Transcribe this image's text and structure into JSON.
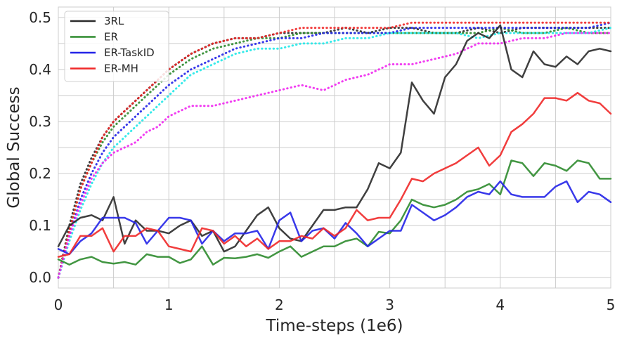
{
  "chart_data": {
    "type": "line",
    "xlabel": "Time-steps (1e6)",
    "ylabel": "Global Success",
    "xlim": [
      0,
      5
    ],
    "ylim": [
      -0.02,
      0.52
    ],
    "xticks": [
      "0",
      "1",
      "2",
      "3",
      "4",
      "5"
    ],
    "yticks": [
      "0.0",
      "0.1",
      "0.2",
      "0.3",
      "0.4",
      "0.5"
    ],
    "grid": true,
    "legend_position": "top-left",
    "legend": [
      {
        "name": "3RL",
        "color": "#2b2b2b"
      },
      {
        "name": "ER",
        "color": "#2e8b2e"
      },
      {
        "name": "ER-TaskID",
        "color": "#2424e8"
      },
      {
        "name": "ER-MH",
        "color": "#f02828"
      }
    ],
    "series": [
      {
        "name": "3RL",
        "style": "solid",
        "color": "#2b2b2b",
        "x": [
          0,
          0.1,
          0.2,
          0.3,
          0.4,
          0.5,
          0.6,
          0.7,
          0.8,
          0.9,
          1.0,
          1.1,
          1.2,
          1.3,
          1.4,
          1.5,
          1.6,
          1.7,
          1.8,
          1.9,
          2.0,
          2.1,
          2.2,
          2.3,
          2.4,
          2.5,
          2.6,
          2.7,
          2.8,
          2.9,
          3.0,
          3.1,
          3.2,
          3.3,
          3.4,
          3.5,
          3.6,
          3.7,
          3.8,
          3.9,
          4.0,
          4.1,
          4.2,
          4.3,
          4.4,
          4.5,
          4.6,
          4.7,
          4.8,
          4.9,
          5.0
        ],
        "y": [
          0.06,
          0.1,
          0.115,
          0.12,
          0.11,
          0.155,
          0.065,
          0.11,
          0.09,
          0.09,
          0.085,
          0.1,
          0.11,
          0.08,
          0.09,
          0.05,
          0.06,
          0.09,
          0.12,
          0.135,
          0.095,
          0.075,
          0.07,
          0.1,
          0.13,
          0.13,
          0.135,
          0.135,
          0.17,
          0.22,
          0.21,
          0.24,
          0.375,
          0.34,
          0.315,
          0.385,
          0.41,
          0.455,
          0.47,
          0.46,
          0.485,
          0.4,
          0.385,
          0.435,
          0.41,
          0.405,
          0.425,
          0.41,
          0.435,
          0.44,
          0.435
        ]
      },
      {
        "name": "ER",
        "style": "solid",
        "color": "#2e8b2e",
        "x": [
          0,
          0.1,
          0.2,
          0.3,
          0.4,
          0.5,
          0.6,
          0.7,
          0.8,
          0.9,
          1.0,
          1.1,
          1.2,
          1.3,
          1.4,
          1.5,
          1.6,
          1.7,
          1.8,
          1.9,
          2.0,
          2.1,
          2.2,
          2.3,
          2.4,
          2.5,
          2.6,
          2.7,
          2.8,
          2.9,
          3.0,
          3.1,
          3.2,
          3.3,
          3.4,
          3.5,
          3.6,
          3.7,
          3.8,
          3.9,
          4.0,
          4.1,
          4.2,
          4.3,
          4.4,
          4.5,
          4.6,
          4.7,
          4.8,
          4.9,
          5.0
        ],
        "y": [
          0.035,
          0.025,
          0.035,
          0.04,
          0.03,
          0.027,
          0.03,
          0.025,
          0.045,
          0.04,
          0.04,
          0.028,
          0.035,
          0.06,
          0.025,
          0.038,
          0.037,
          0.04,
          0.045,
          0.038,
          0.05,
          0.06,
          0.04,
          0.05,
          0.06,
          0.06,
          0.07,
          0.075,
          0.06,
          0.088,
          0.085,
          0.11,
          0.15,
          0.14,
          0.135,
          0.14,
          0.15,
          0.165,
          0.17,
          0.18,
          0.16,
          0.225,
          0.22,
          0.195,
          0.22,
          0.215,
          0.205,
          0.225,
          0.22,
          0.19,
          0.19
        ]
      },
      {
        "name": "ER-TaskID",
        "style": "solid",
        "color": "#2424e8",
        "x": [
          0,
          0.1,
          0.2,
          0.3,
          0.4,
          0.5,
          0.6,
          0.7,
          0.8,
          0.9,
          1.0,
          1.1,
          1.2,
          1.3,
          1.4,
          1.5,
          1.6,
          1.7,
          1.8,
          1.9,
          2.0,
          2.1,
          2.2,
          2.3,
          2.4,
          2.5,
          2.6,
          2.7,
          2.8,
          2.9,
          3.0,
          3.1,
          3.2,
          3.3,
          3.4,
          3.5,
          3.6,
          3.7,
          3.8,
          3.9,
          4.0,
          4.1,
          4.2,
          4.3,
          4.4,
          4.5,
          4.6,
          4.7,
          4.8,
          4.9,
          5.0
        ],
        "y": [
          0.055,
          0.045,
          0.07,
          0.085,
          0.115,
          0.115,
          0.115,
          0.105,
          0.065,
          0.09,
          0.115,
          0.115,
          0.11,
          0.065,
          0.09,
          0.07,
          0.085,
          0.085,
          0.09,
          0.055,
          0.11,
          0.125,
          0.07,
          0.09,
          0.095,
          0.075,
          0.105,
          0.085,
          0.06,
          0.075,
          0.09,
          0.09,
          0.14,
          0.125,
          0.11,
          0.12,
          0.135,
          0.155,
          0.165,
          0.16,
          0.185,
          0.16,
          0.155,
          0.155,
          0.155,
          0.175,
          0.185,
          0.145,
          0.165,
          0.16,
          0.145
        ]
      },
      {
        "name": "ER-MH",
        "style": "solid",
        "color": "#f02828",
        "x": [
          0,
          0.1,
          0.2,
          0.3,
          0.4,
          0.5,
          0.6,
          0.7,
          0.8,
          0.9,
          1.0,
          1.1,
          1.2,
          1.3,
          1.4,
          1.5,
          1.6,
          1.7,
          1.8,
          1.9,
          2.0,
          2.1,
          2.2,
          2.3,
          2.4,
          2.5,
          2.6,
          2.7,
          2.8,
          2.9,
          3.0,
          3.1,
          3.2,
          3.3,
          3.4,
          3.5,
          3.6,
          3.7,
          3.8,
          3.9,
          4.0,
          4.1,
          4.2,
          4.3,
          4.4,
          4.5,
          4.6,
          4.7,
          4.8,
          4.9,
          5.0
        ],
        "y": [
          0.04,
          0.045,
          0.08,
          0.08,
          0.095,
          0.05,
          0.08,
          0.08,
          0.095,
          0.09,
          0.06,
          0.055,
          0.05,
          0.095,
          0.09,
          0.065,
          0.08,
          0.06,
          0.075,
          0.055,
          0.07,
          0.07,
          0.08,
          0.075,
          0.095,
          0.08,
          0.095,
          0.13,
          0.11,
          0.115,
          0.115,
          0.15,
          0.19,
          0.185,
          0.2,
          0.21,
          0.22,
          0.235,
          0.25,
          0.215,
          0.235,
          0.28,
          0.295,
          0.315,
          0.345,
          0.345,
          0.34,
          0.355,
          0.34,
          0.335,
          0.315
        ]
      },
      {
        "name": "3RL (dotted)",
        "style": "dotted",
        "color": "#2b2b2b",
        "x": [
          0,
          0.1,
          0.2,
          0.3,
          0.4,
          0.5,
          0.6,
          0.7,
          0.8,
          0.9,
          1.0,
          1.2,
          1.4,
          1.6,
          1.8,
          2.0,
          2.2,
          2.4,
          2.6,
          2.8,
          3.0,
          3.2,
          3.4,
          3.6,
          3.8,
          4.0,
          4.2,
          4.4,
          4.6,
          4.8,
          5.0
        ],
        "y": [
          0.0,
          0.1,
          0.18,
          0.23,
          0.27,
          0.3,
          0.32,
          0.34,
          0.36,
          0.38,
          0.4,
          0.43,
          0.45,
          0.46,
          0.46,
          0.47,
          0.47,
          0.47,
          0.48,
          0.47,
          0.48,
          0.48,
          0.47,
          0.47,
          0.48,
          0.47,
          0.48,
          0.48,
          0.48,
          0.48,
          0.48
        ]
      },
      {
        "name": "ER (dotted)",
        "style": "dotted",
        "color": "#2e8b2e",
        "x": [
          0,
          0.1,
          0.2,
          0.3,
          0.4,
          0.5,
          0.6,
          0.7,
          0.8,
          0.9,
          1.0,
          1.2,
          1.4,
          1.6,
          1.8,
          2.0,
          2.2,
          2.4,
          2.6,
          2.8,
          3.0,
          3.2,
          3.4,
          3.6,
          3.8,
          4.0,
          4.2,
          4.4,
          4.6,
          4.8,
          5.0
        ],
        "y": [
          0.0,
          0.09,
          0.17,
          0.22,
          0.26,
          0.29,
          0.31,
          0.33,
          0.35,
          0.37,
          0.39,
          0.42,
          0.44,
          0.45,
          0.46,
          0.46,
          0.47,
          0.47,
          0.47,
          0.47,
          0.47,
          0.47,
          0.47,
          0.47,
          0.47,
          0.48,
          0.47,
          0.47,
          0.48,
          0.47,
          0.47
        ]
      },
      {
        "name": "ER-TaskID (dotted)",
        "style": "dotted",
        "color": "#2424e8",
        "x": [
          0,
          0.1,
          0.2,
          0.3,
          0.4,
          0.5,
          0.6,
          0.7,
          0.8,
          0.9,
          1.0,
          1.2,
          1.4,
          1.6,
          1.8,
          2.0,
          2.2,
          2.4,
          2.6,
          2.8,
          3.0,
          3.2,
          3.4,
          3.6,
          3.8,
          4.0,
          4.2,
          4.4,
          4.6,
          4.8,
          5.0
        ],
        "y": [
          0.0,
          0.08,
          0.15,
          0.2,
          0.24,
          0.27,
          0.29,
          0.31,
          0.33,
          0.35,
          0.37,
          0.4,
          0.42,
          0.44,
          0.45,
          0.46,
          0.46,
          0.47,
          0.47,
          0.47,
          0.47,
          0.48,
          0.48,
          0.48,
          0.48,
          0.48,
          0.48,
          0.48,
          0.48,
          0.48,
          0.49
        ]
      },
      {
        "name": "ER-MH (dotted)",
        "style": "dotted",
        "color": "#f02828",
        "x": [
          0,
          0.1,
          0.2,
          0.3,
          0.4,
          0.5,
          0.6,
          0.7,
          0.8,
          0.9,
          1.0,
          1.2,
          1.4,
          1.6,
          1.8,
          2.0,
          2.2,
          2.4,
          2.6,
          2.8,
          3.0,
          3.2,
          3.4,
          3.6,
          3.8,
          4.0,
          4.2,
          4.4,
          4.6,
          4.8,
          5.0
        ],
        "y": [
          0.0,
          0.09,
          0.17,
          0.22,
          0.27,
          0.3,
          0.32,
          0.34,
          0.36,
          0.38,
          0.4,
          0.43,
          0.45,
          0.46,
          0.46,
          0.47,
          0.48,
          0.48,
          0.48,
          0.48,
          0.48,
          0.49,
          0.49,
          0.49,
          0.49,
          0.49,
          0.49,
          0.49,
          0.49,
          0.49,
          0.49
        ]
      },
      {
        "name": "Cyan (dotted)",
        "style": "dotted",
        "color": "#22e8e8",
        "x": [
          0,
          0.1,
          0.2,
          0.3,
          0.4,
          0.5,
          0.6,
          0.7,
          0.8,
          0.9,
          1.0,
          1.2,
          1.4,
          1.6,
          1.8,
          2.0,
          2.2,
          2.4,
          2.6,
          2.8,
          3.0,
          3.2,
          3.4,
          3.6,
          3.8,
          4.0,
          4.2,
          4.4,
          4.6,
          4.8,
          5.0
        ],
        "y": [
          0.0,
          0.07,
          0.13,
          0.18,
          0.22,
          0.25,
          0.27,
          0.29,
          0.31,
          0.33,
          0.35,
          0.39,
          0.41,
          0.43,
          0.44,
          0.44,
          0.45,
          0.45,
          0.46,
          0.46,
          0.47,
          0.47,
          0.47,
          0.47,
          0.46,
          0.47,
          0.47,
          0.47,
          0.47,
          0.47,
          0.48
        ]
      },
      {
        "name": "Magenta (dotted)",
        "style": "dotted",
        "color": "#f028f0",
        "x": [
          0,
          0.1,
          0.2,
          0.3,
          0.4,
          0.5,
          0.6,
          0.7,
          0.8,
          0.9,
          1.0,
          1.2,
          1.4,
          1.6,
          1.8,
          2.0,
          2.2,
          2.4,
          2.6,
          2.8,
          3.0,
          3.2,
          3.4,
          3.6,
          3.8,
          4.0,
          4.2,
          4.4,
          4.6,
          4.8,
          5.0
        ],
        "y": [
          0.0,
          0.08,
          0.14,
          0.19,
          0.22,
          0.24,
          0.25,
          0.26,
          0.28,
          0.29,
          0.31,
          0.33,
          0.33,
          0.34,
          0.35,
          0.36,
          0.37,
          0.36,
          0.38,
          0.39,
          0.41,
          0.41,
          0.42,
          0.43,
          0.45,
          0.45,
          0.46,
          0.46,
          0.47,
          0.47,
          0.47
        ]
      }
    ]
  }
}
